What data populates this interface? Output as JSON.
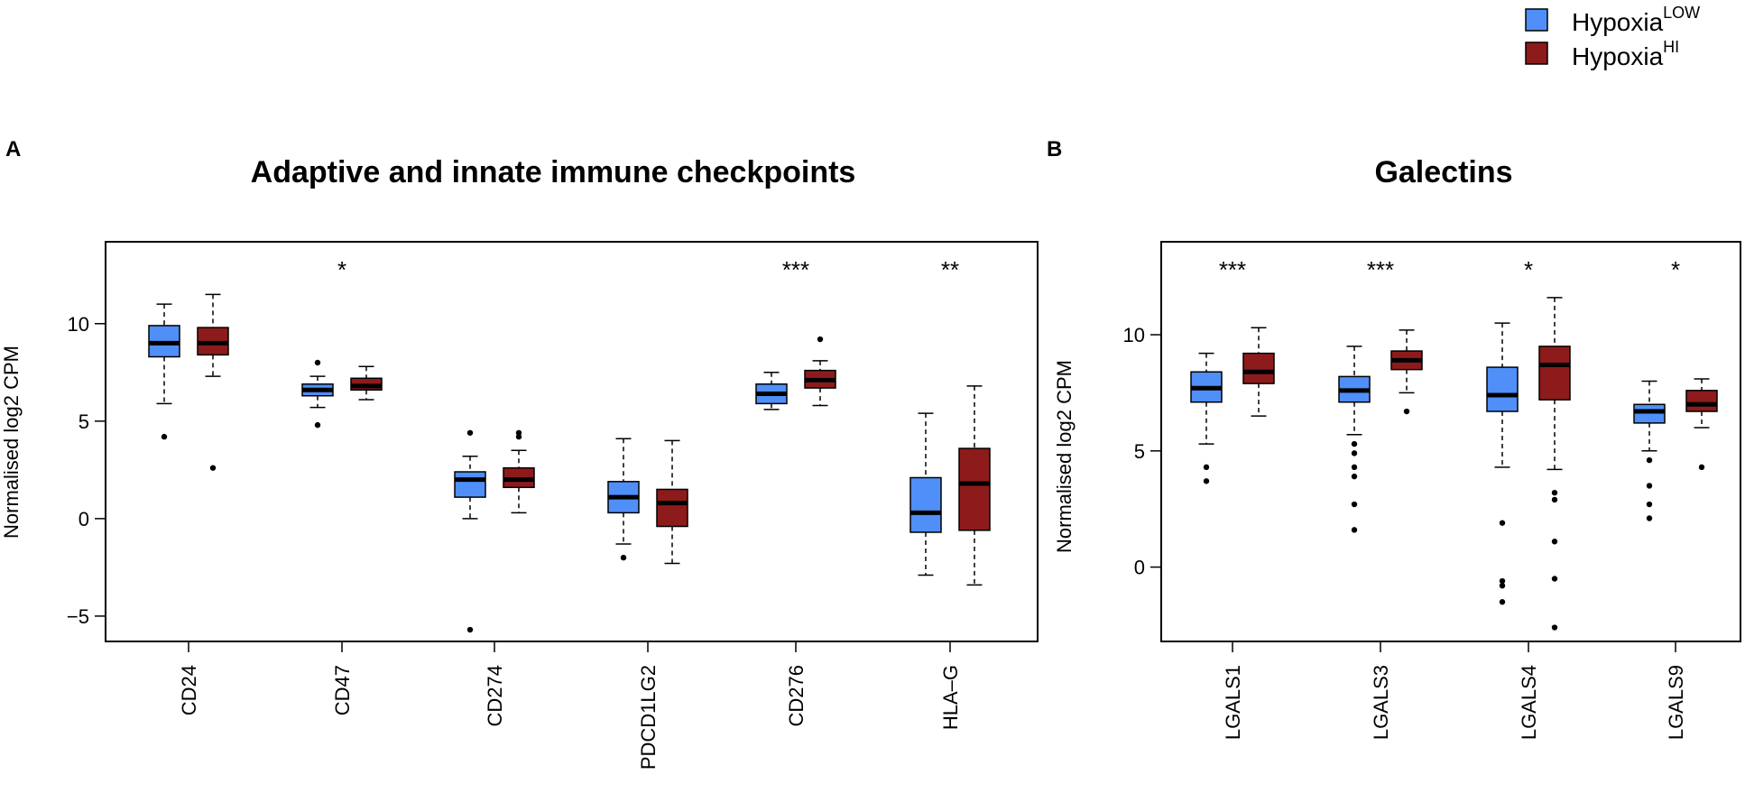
{
  "legend": {
    "items": [
      {
        "base": "Hypoxia",
        "sup": "LOW",
        "color": "#4F8FF7"
      },
      {
        "base": "Hypoxia",
        "sup": "HI",
        "color": "#8E1B1B"
      }
    ]
  },
  "chart_data": [
    {
      "type": "box",
      "panel_label": "A",
      "title": "Adaptive and innate immune checkpoints",
      "ylabel": "Normalised log2 CPM",
      "xlabel": "",
      "ylim": [
        -6.3,
        14.2
      ],
      "yticks": [
        -5,
        0,
        5,
        10
      ],
      "categories": [
        "CD24",
        "CD47",
        "CD274",
        "PDCD1LG2",
        "CD276",
        "HLA–G"
      ],
      "significance": [
        "",
        "*",
        "",
        "",
        "***",
        "**"
      ],
      "series": [
        {
          "name": "HypoxiaLOW",
          "boxes": [
            {
              "low": 5.9,
              "q1": 8.3,
              "median": 9.0,
              "q3": 9.9,
              "high": 11.0,
              "outliers": [
                4.2
              ]
            },
            {
              "low": 5.7,
              "q1": 6.3,
              "median": 6.6,
              "q3": 6.9,
              "high": 7.3,
              "outliers": [
                8.0,
                4.8
              ]
            },
            {
              "low": 0.0,
              "q1": 1.1,
              "median": 2.0,
              "q3": 2.4,
              "high": 3.2,
              "outliers": [
                4.4,
                -5.7
              ]
            },
            {
              "low": -1.3,
              "q1": 0.3,
              "median": 1.1,
              "q3": 1.9,
              "high": 4.1,
              "outliers": [
                -2.0
              ]
            },
            {
              "low": 5.6,
              "q1": 5.9,
              "median": 6.4,
              "q3": 6.9,
              "high": 7.5,
              "outliers": []
            },
            {
              "low": -2.9,
              "q1": -0.7,
              "median": 0.3,
              "q3": 2.1,
              "high": 5.4,
              "outliers": []
            }
          ]
        },
        {
          "name": "HypoxiaHI",
          "boxes": [
            {
              "low": 7.3,
              "q1": 8.4,
              "median": 9.0,
              "q3": 9.8,
              "high": 11.5,
              "outliers": [
                2.6
              ]
            },
            {
              "low": 6.1,
              "q1": 6.6,
              "median": 6.8,
              "q3": 7.2,
              "high": 7.8,
              "outliers": []
            },
            {
              "low": 0.3,
              "q1": 1.6,
              "median": 2.0,
              "q3": 2.6,
              "high": 3.5,
              "outliers": [
                4.2,
                4.4
              ]
            },
            {
              "low": -2.3,
              "q1": -0.4,
              "median": 0.8,
              "q3": 1.5,
              "high": 4.0,
              "outliers": []
            },
            {
              "low": 5.8,
              "q1": 6.7,
              "median": 7.1,
              "q3": 7.6,
              "high": 8.1,
              "outliers": [
                9.2
              ]
            },
            {
              "low": -3.4,
              "q1": -0.6,
              "median": 1.8,
              "q3": 3.6,
              "high": 6.8,
              "outliers": []
            }
          ]
        }
      ]
    },
    {
      "type": "box",
      "panel_label": "B",
      "title": "Galectins",
      "ylabel": "Normalised log2 CPM",
      "xlabel": "",
      "ylim": [
        -3.2,
        14.0
      ],
      "yticks": [
        0,
        5,
        10
      ],
      "categories": [
        "LGALS1",
        "LGALS3",
        "LGALS4",
        "LGALS9"
      ],
      "significance": [
        "***",
        "***",
        "*",
        "*"
      ],
      "series": [
        {
          "name": "HypoxiaLOW",
          "boxes": [
            {
              "low": 5.3,
              "q1": 7.1,
              "median": 7.7,
              "q3": 8.4,
              "high": 9.2,
              "outliers": [
                4.3,
                3.7
              ]
            },
            {
              "low": 5.7,
              "q1": 7.1,
              "median": 7.6,
              "q3": 8.2,
              "high": 9.5,
              "outliers": [
                5.3,
                4.9,
                4.3,
                3.9,
                2.7,
                1.6
              ]
            },
            {
              "low": 4.3,
              "q1": 6.7,
              "median": 7.4,
              "q3": 8.6,
              "high": 10.5,
              "outliers": [
                1.9,
                -0.6,
                -0.8,
                -1.5
              ]
            },
            {
              "low": 5.0,
              "q1": 6.2,
              "median": 6.7,
              "q3": 7.0,
              "high": 8.0,
              "outliers": [
                4.6,
                3.5,
                2.7,
                2.1
              ]
            }
          ]
        },
        {
          "name": "HypoxiaHI",
          "boxes": [
            {
              "low": 6.5,
              "q1": 7.9,
              "median": 8.4,
              "q3": 9.2,
              "high": 10.3,
              "outliers": []
            },
            {
              "low": 7.5,
              "q1": 8.5,
              "median": 8.9,
              "q3": 9.3,
              "high": 10.2,
              "outliers": [
                6.7
              ]
            },
            {
              "low": 4.2,
              "q1": 7.2,
              "median": 8.7,
              "q3": 9.5,
              "high": 11.6,
              "outliers": [
                3.2,
                2.9,
                1.1,
                -0.5,
                -2.6
              ]
            },
            {
              "low": 6.0,
              "q1": 6.7,
              "median": 7.0,
              "q3": 7.6,
              "high": 8.1,
              "outliers": [
                4.3
              ]
            }
          ]
        }
      ]
    }
  ]
}
